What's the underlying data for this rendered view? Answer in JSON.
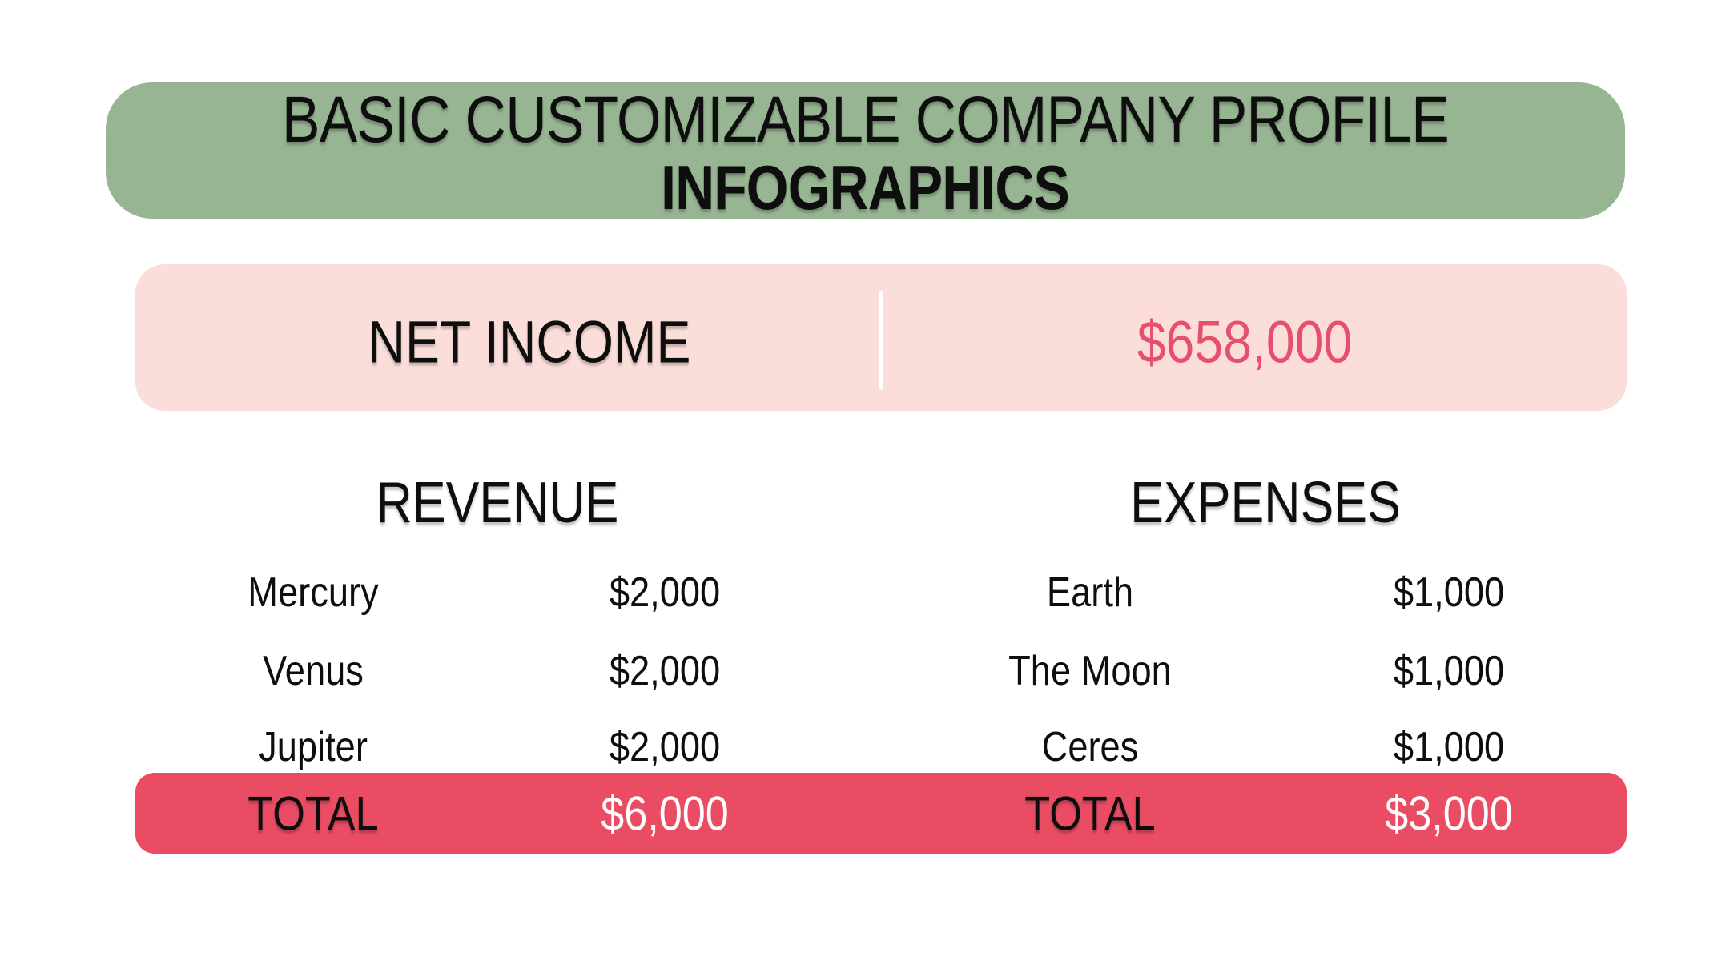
{
  "colors": {
    "banner_green": "#97B592",
    "panel_pink": "#FBDEDA",
    "bar_red": "#EA4D63",
    "value_red": "#E6506C",
    "text_black": "#0E0E0E",
    "white": "#FFFFFF"
  },
  "header": {
    "title_line1": "BASIC CUSTOMIZABLE COMPANY PROFILE",
    "title_line2": "INFOGRAPHICS"
  },
  "net_income": {
    "label": "NET INCOME",
    "value": "$658,000"
  },
  "revenue": {
    "title": "REVENUE",
    "rows": [
      {
        "label": "Mercury",
        "value": "$2,000"
      },
      {
        "label": "Venus",
        "value": "$2,000"
      },
      {
        "label": "Jupiter",
        "value": "$2,000"
      }
    ],
    "total_label": "TOTAL",
    "total_value": "$6,000"
  },
  "expenses": {
    "title": "EXPENSES",
    "rows": [
      {
        "label": "Earth",
        "value": "$1,000"
      },
      {
        "label": "The Moon",
        "value": "$1,000"
      },
      {
        "label": "Ceres",
        "value": "$1,000"
      }
    ],
    "total_label": "TOTAL",
    "total_value": "$3,000"
  },
  "chart_data": {
    "type": "table",
    "title": "BASIC CUSTOMIZABLE COMPANY PROFILE INFOGRAPHICS",
    "net_income": 658000,
    "tables": [
      {
        "name": "REVENUE",
        "rows": [
          [
            "Mercury",
            2000
          ],
          [
            "Venus",
            2000
          ],
          [
            "Jupiter",
            2000
          ]
        ],
        "total": 6000
      },
      {
        "name": "EXPENSES",
        "rows": [
          [
            "Earth",
            1000
          ],
          [
            "The Moon",
            1000
          ],
          [
            "Ceres",
            1000
          ]
        ],
        "total": 3000
      }
    ]
  }
}
